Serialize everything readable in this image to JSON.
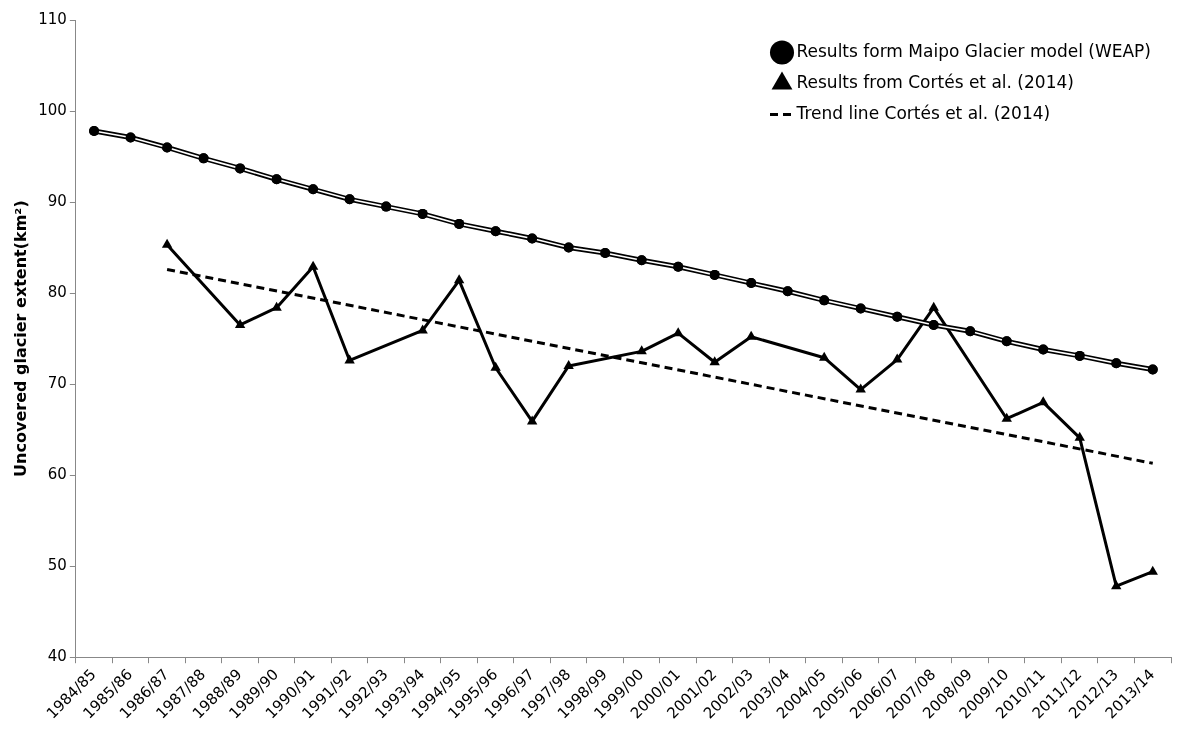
{
  "chart_data": {
    "type": "line",
    "ylabel": "Uncovered glacier extent(km²)",
    "categories": [
      "1984/85",
      "1985/86",
      "1986/87",
      "1987/88",
      "1988/89",
      "1989/90",
      "1990/91",
      "1991/92",
      "1992/93",
      "1993/94",
      "1994/95",
      "1995/96",
      "1996/97",
      "1997/98",
      "1998/99",
      "1999/00",
      "2000/01",
      "2001/02",
      "2002/03",
      "2003/04",
      "2004/05",
      "2005/06",
      "2006/07",
      "2007/08",
      "2008/09",
      "2009/10",
      "2010/11",
      "2011/12",
      "2012/13",
      "2013/14"
    ],
    "series": [
      {
        "name": "Results form Maipo Glacier model (WEAP)",
        "color": "#000000",
        "marker": "circle",
        "line_style": "solid",
        "values": [
          97.8,
          97.1,
          96.0,
          94.8,
          93.7,
          92.5,
          91.4,
          90.3,
          89.5,
          88.7,
          87.6,
          86.8,
          86.0,
          85.0,
          84.4,
          83.6,
          82.9,
          82.0,
          81.1,
          80.2,
          79.2,
          78.3,
          77.4,
          76.5,
          75.8,
          74.7,
          73.8,
          73.1,
          72.3,
          71.6
        ]
      },
      {
        "name": "Results from Cortés et al. (2014)",
        "color": "#000000",
        "marker": "triangle",
        "line_style": "solid",
        "values": [
          null,
          null,
          85.3,
          null,
          76.5,
          78.4,
          82.9,
          72.6,
          null,
          75.9,
          81.4,
          71.8,
          65.9,
          72.0,
          null,
          73.6,
          75.6,
          72.4,
          75.2,
          null,
          72.9,
          69.4,
          72.7,
          78.4,
          null,
          66.2,
          68.0,
          64.1,
          47.8,
          49.4
        ]
      },
      {
        "name": "Trend line Cortés et al. (2014)",
        "color": "#000000",
        "marker": "none",
        "line_style": "dashed",
        "values": [
          null,
          null,
          82.6,
          null,
          null,
          null,
          null,
          null,
          null,
          null,
          null,
          null,
          null,
          null,
          null,
          null,
          null,
          null,
          null,
          null,
          null,
          null,
          null,
          null,
          null,
          null,
          null,
          null,
          null,
          61.3
        ]
      }
    ],
    "ylim": [
      40,
      110
    ],
    "yticks": [
      40,
      50,
      60,
      70,
      80,
      90,
      100,
      110
    ],
    "legend": "top right"
  }
}
